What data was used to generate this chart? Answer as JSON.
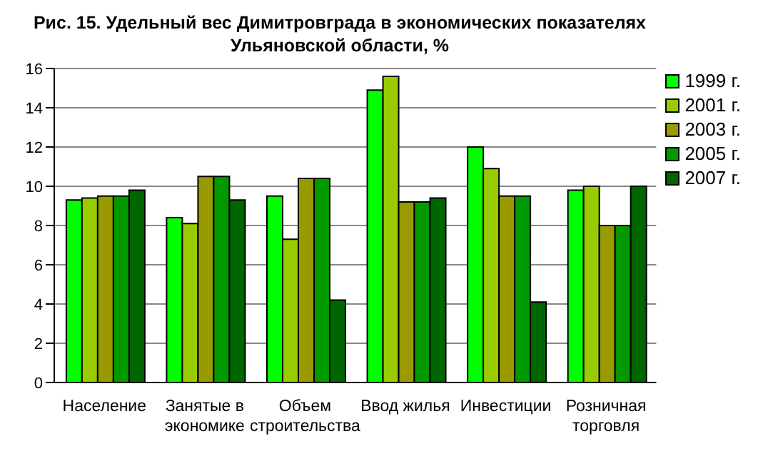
{
  "chart_data": {
    "type": "bar",
    "title": "Рис. 15. Удельный вес Димитровграда в экономических показателях\nУльяновской области, %",
    "categories": [
      "Население",
      "Занятые в\nэкономике",
      "Объем\nстроительства",
      "Ввод жилья",
      "Инвестиции",
      "Розничная\nторговля"
    ],
    "series": [
      {
        "name": "1999 г.",
        "color": "#00ff00",
        "values": [
          9.3,
          8.4,
          9.5,
          14.9,
          12.0,
          9.8
        ]
      },
      {
        "name": "2001 г.",
        "color": "#99cc00",
        "values": [
          9.4,
          8.1,
          7.3,
          15.6,
          10.9,
          10.0
        ]
      },
      {
        "name": "2003 г.",
        "color": "#999900",
        "values": [
          9.5,
          10.5,
          10.4,
          9.2,
          9.5,
          8.0
        ]
      },
      {
        "name": "2005 г.",
        "color": "#009900",
        "values": [
          9.5,
          10.5,
          10.4,
          9.2,
          9.5,
          8.0
        ]
      },
      {
        "name": "2007 г.",
        "color": "#006600",
        "values": [
          9.8,
          9.3,
          4.2,
          9.4,
          4.1,
          10.0
        ]
      }
    ],
    "ylim": [
      0,
      16
    ],
    "yticks": [
      0,
      2,
      4,
      6,
      8,
      10,
      12,
      14,
      16
    ],
    "grid": "y",
    "legend": "top right"
  }
}
